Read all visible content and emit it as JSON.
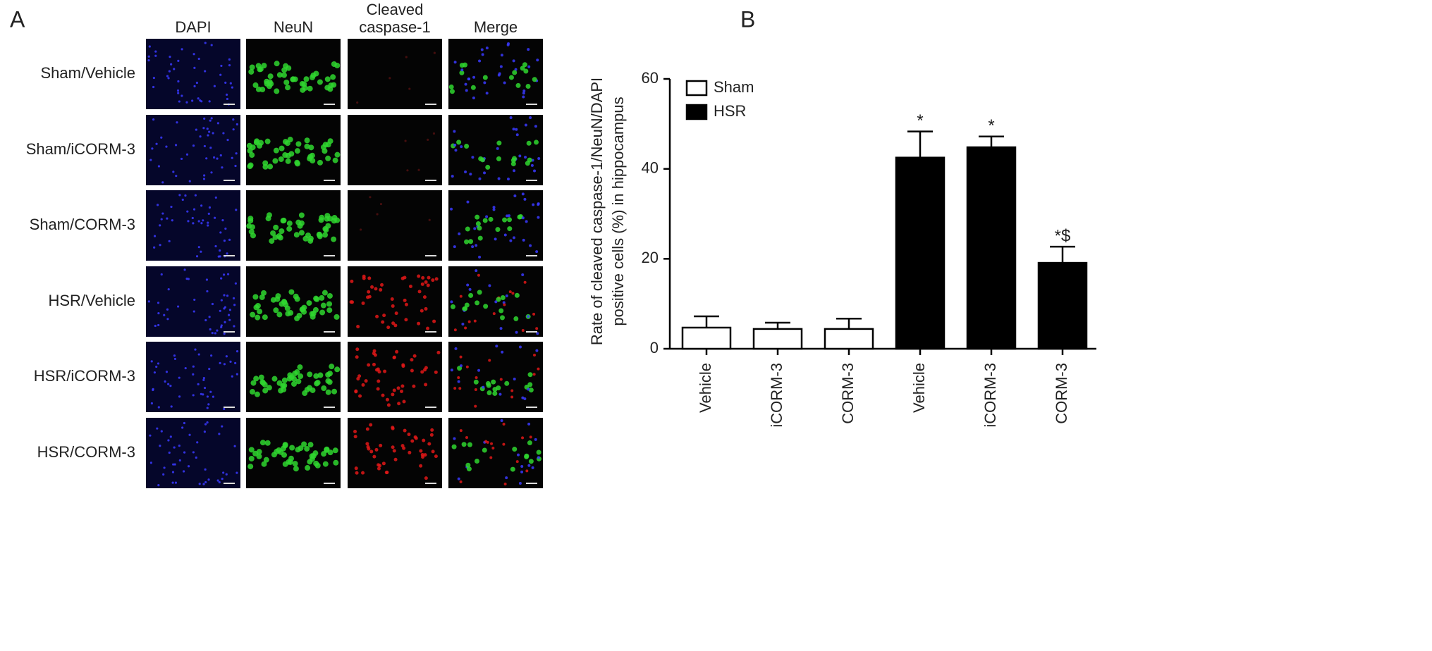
{
  "panel_a": {
    "label": "A",
    "columns": [
      "DAPI",
      "NeuN",
      [
        "Cleaved",
        "caspase-1"
      ],
      "Merge"
    ],
    "rows": [
      "Sham/Vehicle",
      "Sham/iCORM-3",
      "Sham/CORM-3",
      "HSR/Vehicle",
      "HSR/iCORM-3",
      "HSR/CORM-3"
    ]
  },
  "panel_b": {
    "label": "B"
  },
  "chart_data": {
    "type": "bar",
    "ylabel": [
      "Rate of cleaved caspase-1/NeuN/DAPI",
      "positive cells (%) in hippocampus"
    ],
    "categories": [
      "Vehicle",
      "iCORM-3",
      "CORM-3",
      "Vehicle",
      "iCORM-3",
      "CORM-3"
    ],
    "series": [
      {
        "name": "Sham",
        "color": "#ffffff",
        "values": [
          4.7,
          4.4,
          4.4,
          null,
          null,
          null
        ],
        "errors": [
          2.5,
          1.4,
          2.3,
          null,
          null,
          null
        ]
      },
      {
        "name": "HSR",
        "color": "#000000",
        "values": [
          null,
          null,
          null,
          42.5,
          44.8,
          19.1
        ],
        "errors": [
          null,
          null,
          null,
          5.8,
          2.4,
          3.6
        ]
      }
    ],
    "annotations": [
      null,
      null,
      null,
      "*",
      "*",
      "*$"
    ],
    "ylim": [
      0,
      60
    ],
    "yticks": [
      0,
      20,
      40,
      60
    ],
    "legend": "upper left"
  }
}
